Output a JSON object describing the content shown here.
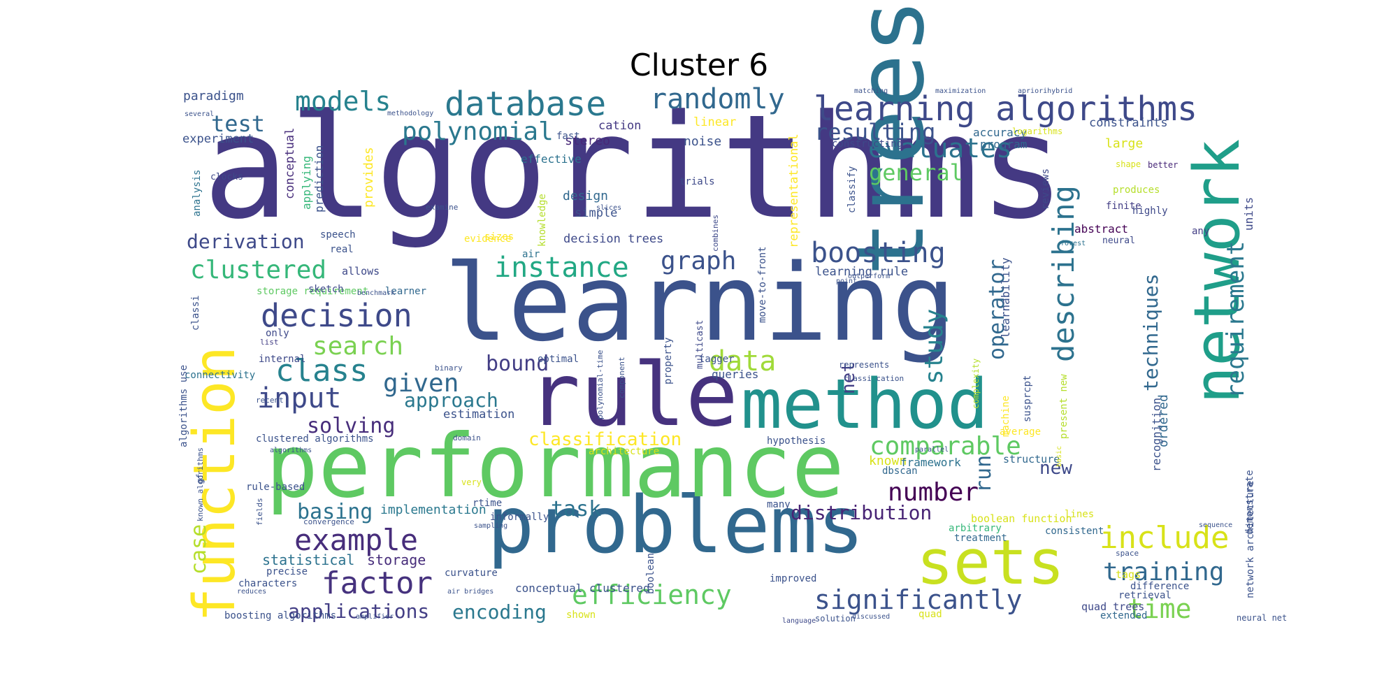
{
  "figure": {
    "title": "Cluster 6"
  },
  "colors": {
    "background": "#ffffff",
    "title": "#000000"
  },
  "palette": [
    "#440154",
    "#472a7a",
    "#3b518b",
    "#2c718e",
    "#21908d",
    "#27ad81",
    "#5cc863",
    "#aadc32",
    "#fde725"
  ],
  "wordcloud": [
    {
      "text": "algorithms",
      "color": "#443983"
    },
    {
      "text": "learning",
      "color": "#3b528b"
    },
    {
      "text": "trees",
      "color": "#2c728e"
    },
    {
      "text": "problems",
      "color": "#31688e"
    },
    {
      "text": "performance",
      "color": "#5ec962"
    },
    {
      "text": "rule",
      "color": "#46327e"
    },
    {
      "text": "method",
      "color": "#21918c"
    },
    {
      "text": "network",
      "color": "#1f9e89"
    },
    {
      "text": "function",
      "color": "#fde725"
    },
    {
      "text": "sets",
      "color": "#c8e020"
    },
    {
      "text": "learning algorithms",
      "color": "#3e4989"
    },
    {
      "text": "database",
      "color": "#2a788e"
    },
    {
      "text": "randomly",
      "color": "#31688e"
    },
    {
      "text": "models",
      "color": "#26828e"
    },
    {
      "text": "polynomial",
      "color": "#2a788e"
    },
    {
      "text": "evaluates",
      "color": "#2c728e"
    },
    {
      "text": "general",
      "color": "#5ec962"
    },
    {
      "text": "resulting",
      "color": "#3b528b"
    },
    {
      "text": "boosting",
      "color": "#3b528b"
    },
    {
      "text": "instance",
      "color": "#22a884"
    },
    {
      "text": "graph",
      "color": "#3b528b"
    },
    {
      "text": "decision",
      "color": "#3e4989"
    },
    {
      "text": "clustered",
      "color": "#35b779"
    },
    {
      "text": "describing",
      "color": "#2c728e"
    },
    {
      "text": "requirement",
      "color": "#2a788e"
    },
    {
      "text": "techniques",
      "color": "#31688e"
    },
    {
      "text": "study",
      "color": "#26828e"
    },
    {
      "text": "operator",
      "color": "#31688e"
    },
    {
      "text": "search",
      "color": "#7ad151"
    },
    {
      "text": "class",
      "color": "#26828e"
    },
    {
      "text": "input",
      "color": "#3e4989"
    },
    {
      "text": "given",
      "color": "#31688e"
    },
    {
      "text": "data",
      "color": "#a0da39"
    },
    {
      "text": "bound",
      "color": "#433e85"
    },
    {
      "text": "solving",
      "color": "#472d7b"
    },
    {
      "text": "approach",
      "color": "#2a788e"
    },
    {
      "text": "classification",
      "color": "#fde725"
    },
    {
      "text": "comparable",
      "color": "#5ec962"
    },
    {
      "text": "number",
      "color": "#440154"
    },
    {
      "text": "run",
      "color": "#31688e"
    },
    {
      "text": "new",
      "color": "#3e4989"
    },
    {
      "text": "example",
      "color": "#472d7b"
    },
    {
      "text": "case",
      "color": "#b5de2b"
    },
    {
      "text": "basing",
      "color": "#2c728e"
    },
    {
      "text": "task",
      "color": "#2c728e"
    },
    {
      "text": "distribution",
      "color": "#482475"
    },
    {
      "text": "include",
      "color": "#d8e219"
    },
    {
      "text": "training",
      "color": "#31688e"
    },
    {
      "text": "factor",
      "color": "#46327e"
    },
    {
      "text": "efficiency",
      "color": "#5ec962"
    },
    {
      "text": "significantly",
      "color": "#3b528b"
    },
    {
      "text": "time",
      "color": "#7ad151"
    },
    {
      "text": "applications",
      "color": "#433e85"
    },
    {
      "text": "encoding",
      "color": "#2a788e"
    },
    {
      "text": "statistical",
      "color": "#2c728e"
    },
    {
      "text": "storage",
      "color": "#472d7b"
    },
    {
      "text": "implementation",
      "color": "#2a788e"
    },
    {
      "text": "net",
      "color": "#433e85"
    },
    {
      "text": "derivation",
      "color": "#3e4989"
    },
    {
      "text": "test",
      "color": "#31688e"
    },
    {
      "text": "paradigm",
      "color": "#3b528b"
    },
    {
      "text": "experiment",
      "color": "#3b528b"
    },
    {
      "text": "conceptual",
      "color": "#472d7b"
    },
    {
      "text": "prediction",
      "color": "#3b528b"
    },
    {
      "text": "applying",
      "color": "#35b779"
    },
    {
      "text": "provides",
      "color": "#fde725"
    },
    {
      "text": "analysis",
      "color": "#2c728e"
    },
    {
      "text": "clocks",
      "color": "#3e4989"
    },
    {
      "text": "stereo",
      "color": "#482878"
    },
    {
      "text": "noise",
      "color": "#3b528b"
    },
    {
      "text": "cation",
      "color": "#443983"
    },
    {
      "text": "linear",
      "color": "#fde725"
    },
    {
      "text": "effective",
      "color": "#2c728e"
    },
    {
      "text": "trials",
      "color": "#3e4989"
    },
    {
      "text": "design",
      "color": "#31688e"
    },
    {
      "text": "simple",
      "color": "#3b528b"
    },
    {
      "text": "knowledge",
      "color": "#b5de2b"
    },
    {
      "text": "decision trees",
      "color": "#3e4989"
    },
    {
      "text": "evidence",
      "color": "#fde725"
    },
    {
      "text": "air",
      "color": "#2c728e"
    },
    {
      "text": "sizes",
      "color": "#fde725"
    },
    {
      "text": "combines",
      "color": "#3e4989"
    },
    {
      "text": "move-to-front",
      "color": "#3b528b"
    },
    {
      "text": "representational",
      "color": "#fde725"
    },
    {
      "text": "accuracy",
      "color": "#31688e"
    },
    {
      "text": "program",
      "color": "#31688e"
    },
    {
      "text": "constructing",
      "color": "#3e4989"
    },
    {
      "text": "constraints",
      "color": "#3b528b"
    },
    {
      "text": "large",
      "color": "#d8e219"
    },
    {
      "text": "logarithms",
      "color": "#d8e219"
    },
    {
      "text": "classify",
      "color": "#3b528b"
    },
    {
      "text": "reviews",
      "color": "#3e4989"
    },
    {
      "text": "shape",
      "color": "#d8e219"
    },
    {
      "text": "better",
      "color": "#482878"
    },
    {
      "text": "produces",
      "color": "#b5de2b"
    },
    {
      "text": "finite",
      "color": "#433e85"
    },
    {
      "text": "highly",
      "color": "#3e4989"
    },
    {
      "text": "any",
      "color": "#433e85"
    },
    {
      "text": "units",
      "color": "#3e4989"
    },
    {
      "text": "neural",
      "color": "#3e4989"
    },
    {
      "text": "abstract",
      "color": "#440154"
    },
    {
      "text": "forest",
      "color": "#2c728e"
    },
    {
      "text": "learning rule",
      "color": "#3b528b"
    },
    {
      "text": "learnability",
      "color": "#3b528b"
    },
    {
      "text": "complexity",
      "color": "#b5de2b"
    },
    {
      "text": "storage requirement",
      "color": "#5ec962"
    },
    {
      "text": "sketch",
      "color": "#3e4989"
    },
    {
      "text": "learner",
      "color": "#31688e"
    },
    {
      "text": "allows",
      "color": "#3e4989"
    },
    {
      "text": "classi",
      "color": "#3b528b"
    },
    {
      "text": "only",
      "color": "#3e4989"
    },
    {
      "text": "list",
      "color": "#433e85"
    },
    {
      "text": "internal",
      "color": "#3e4989"
    },
    {
      "text": "optimal",
      "color": "#3b528b"
    },
    {
      "text": "tagger",
      "color": "#3b528b"
    },
    {
      "text": "queries",
      "color": "#3b528b"
    },
    {
      "text": "connectivity",
      "color": "#2c728e"
    },
    {
      "text": "binary",
      "color": "#3b528b"
    },
    {
      "text": "recent",
      "color": "#3b528b"
    },
    {
      "text": "multicast",
      "color": "#3e4989"
    },
    {
      "text": "property",
      "color": "#3b528b"
    },
    {
      "text": "component",
      "color": "#3b528b"
    },
    {
      "text": "polynomial-time",
      "color": "#3b528b"
    },
    {
      "text": "estimation",
      "color": "#3b528b"
    },
    {
      "text": "domain",
      "color": "#3b528b"
    },
    {
      "text": "hypothesis",
      "color": "#3b528b"
    },
    {
      "text": "machine",
      "color": "#fde725"
    },
    {
      "text": "susprcpt",
      "color": "#3b528b"
    },
    {
      "text": "present new",
      "color": "#b5de2b"
    },
    {
      "text": "classi cation",
      "color": "#3b528b"
    },
    {
      "text": "represents",
      "color": "#3b528b"
    },
    {
      "text": "known",
      "color": "#d8e219"
    },
    {
      "text": "dbscan",
      "color": "#31688e"
    },
    {
      "text": "framework",
      "color": "#2c728e"
    },
    {
      "text": "structure",
      "color": "#31688e"
    },
    {
      "text": "average",
      "color": "#fde725"
    },
    {
      "text": "basic",
      "color": "#d8e219"
    },
    {
      "text": "lines",
      "color": "#d8e219"
    },
    {
      "text": "ordered",
      "color": "#31688e"
    },
    {
      "text": "recognition",
      "color": "#3b528b"
    },
    {
      "text": "demonstrate",
      "color": "#3b528b"
    },
    {
      "text": "network architecture",
      "color": "#3b528b"
    },
    {
      "text": "boolean function",
      "color": "#d8e219"
    },
    {
      "text": "arbitrary",
      "color": "#35b779"
    },
    {
      "text": "treatment",
      "color": "#31688e"
    },
    {
      "text": "consistent",
      "color": "#31688e"
    },
    {
      "text": "sequence",
      "color": "#3b528b"
    },
    {
      "text": "tags",
      "color": "#d8e219"
    },
    {
      "text": "difference",
      "color": "#3b528b"
    },
    {
      "text": "retrieval",
      "color": "#3b528b"
    },
    {
      "text": "quad trees",
      "color": "#3e4989"
    },
    {
      "text": "extended",
      "color": "#31688e"
    },
    {
      "text": "neural net",
      "color": "#3b528b"
    },
    {
      "text": "quad",
      "color": "#d8e219"
    },
    {
      "text": "discussed",
      "color": "#3b528b"
    },
    {
      "text": "language",
      "color": "#3e4989"
    },
    {
      "text": "solution",
      "color": "#3b528b"
    },
    {
      "text": "shown",
      "color": "#d8e219"
    },
    {
      "text": "conceptual clustered",
      "color": "#3b528b"
    },
    {
      "text": "improved",
      "color": "#3b528b"
    },
    {
      "text": "air bridges",
      "color": "#3b528b"
    },
    {
      "text": "amplifier",
      "color": "#3b528b"
    },
    {
      "text": "boosting algorithms",
      "color": "#3b528b"
    },
    {
      "text": "reduces",
      "color": "#3b528b"
    },
    {
      "text": "characters",
      "color": "#3b528b"
    },
    {
      "text": "precise",
      "color": "#3b528b"
    },
    {
      "text": "curvature",
      "color": "#3b528b"
    },
    {
      "text": "boolean",
      "color": "#3b528b"
    },
    {
      "text": "informally",
      "color": "#3b528b"
    },
    {
      "text": "sampling",
      "color": "#3b528b"
    },
    {
      "text": "rtime",
      "color": "#3b528b"
    },
    {
      "text": "very",
      "color": "#d8e219"
    },
    {
      "text": "fields",
      "color": "#3b528b"
    },
    {
      "text": "convergence",
      "color": "#3b528b"
    },
    {
      "text": "rule-based",
      "color": "#3b528b"
    },
    {
      "text": "gf",
      "color": "#3b528b"
    },
    {
      "text": "known algorithms",
      "color": "#3b528b"
    },
    {
      "text": "clustered algorithms",
      "color": "#3b528b"
    },
    {
      "text": "algorithms use",
      "color": "#3b528b"
    },
    {
      "text": "algorithms",
      "color": "#3b528b"
    },
    {
      "text": "many",
      "color": "#3b528b"
    },
    {
      "text": "space",
      "color": "#3b528b"
    },
    {
      "text": "outperform",
      "color": "#3b528b"
    },
    {
      "text": "point",
      "color": "#3b528b"
    },
    {
      "text": "examine",
      "color": "#3b528b"
    },
    {
      "text": "speech",
      "color": "#3b528b"
    },
    {
      "text": "real",
      "color": "#3b528b"
    },
    {
      "text": "slices",
      "color": "#3b528b"
    },
    {
      "text": "fast",
      "color": "#3b528b"
    },
    {
      "text": "several",
      "color": "#3b528b"
    },
    {
      "text": "methodology",
      "color": "#3b528b"
    },
    {
      "text": "matching",
      "color": "#3b528b"
    },
    {
      "text": "maximization",
      "color": "#3b528b"
    },
    {
      "text": "apriorihybrid",
      "color": "#3b528b"
    },
    {
      "text": "benchmark",
      "color": "#3b528b"
    },
    {
      "text": "architecture",
      "color": "#d8e219"
    },
    {
      "text": "parallel",
      "color": "#3b528b"
    },
    {
      "text": "transform",
      "color": "#3b528b"
    },
    {
      "text": "log",
      "color": "#3b528b"
    }
  ]
}
